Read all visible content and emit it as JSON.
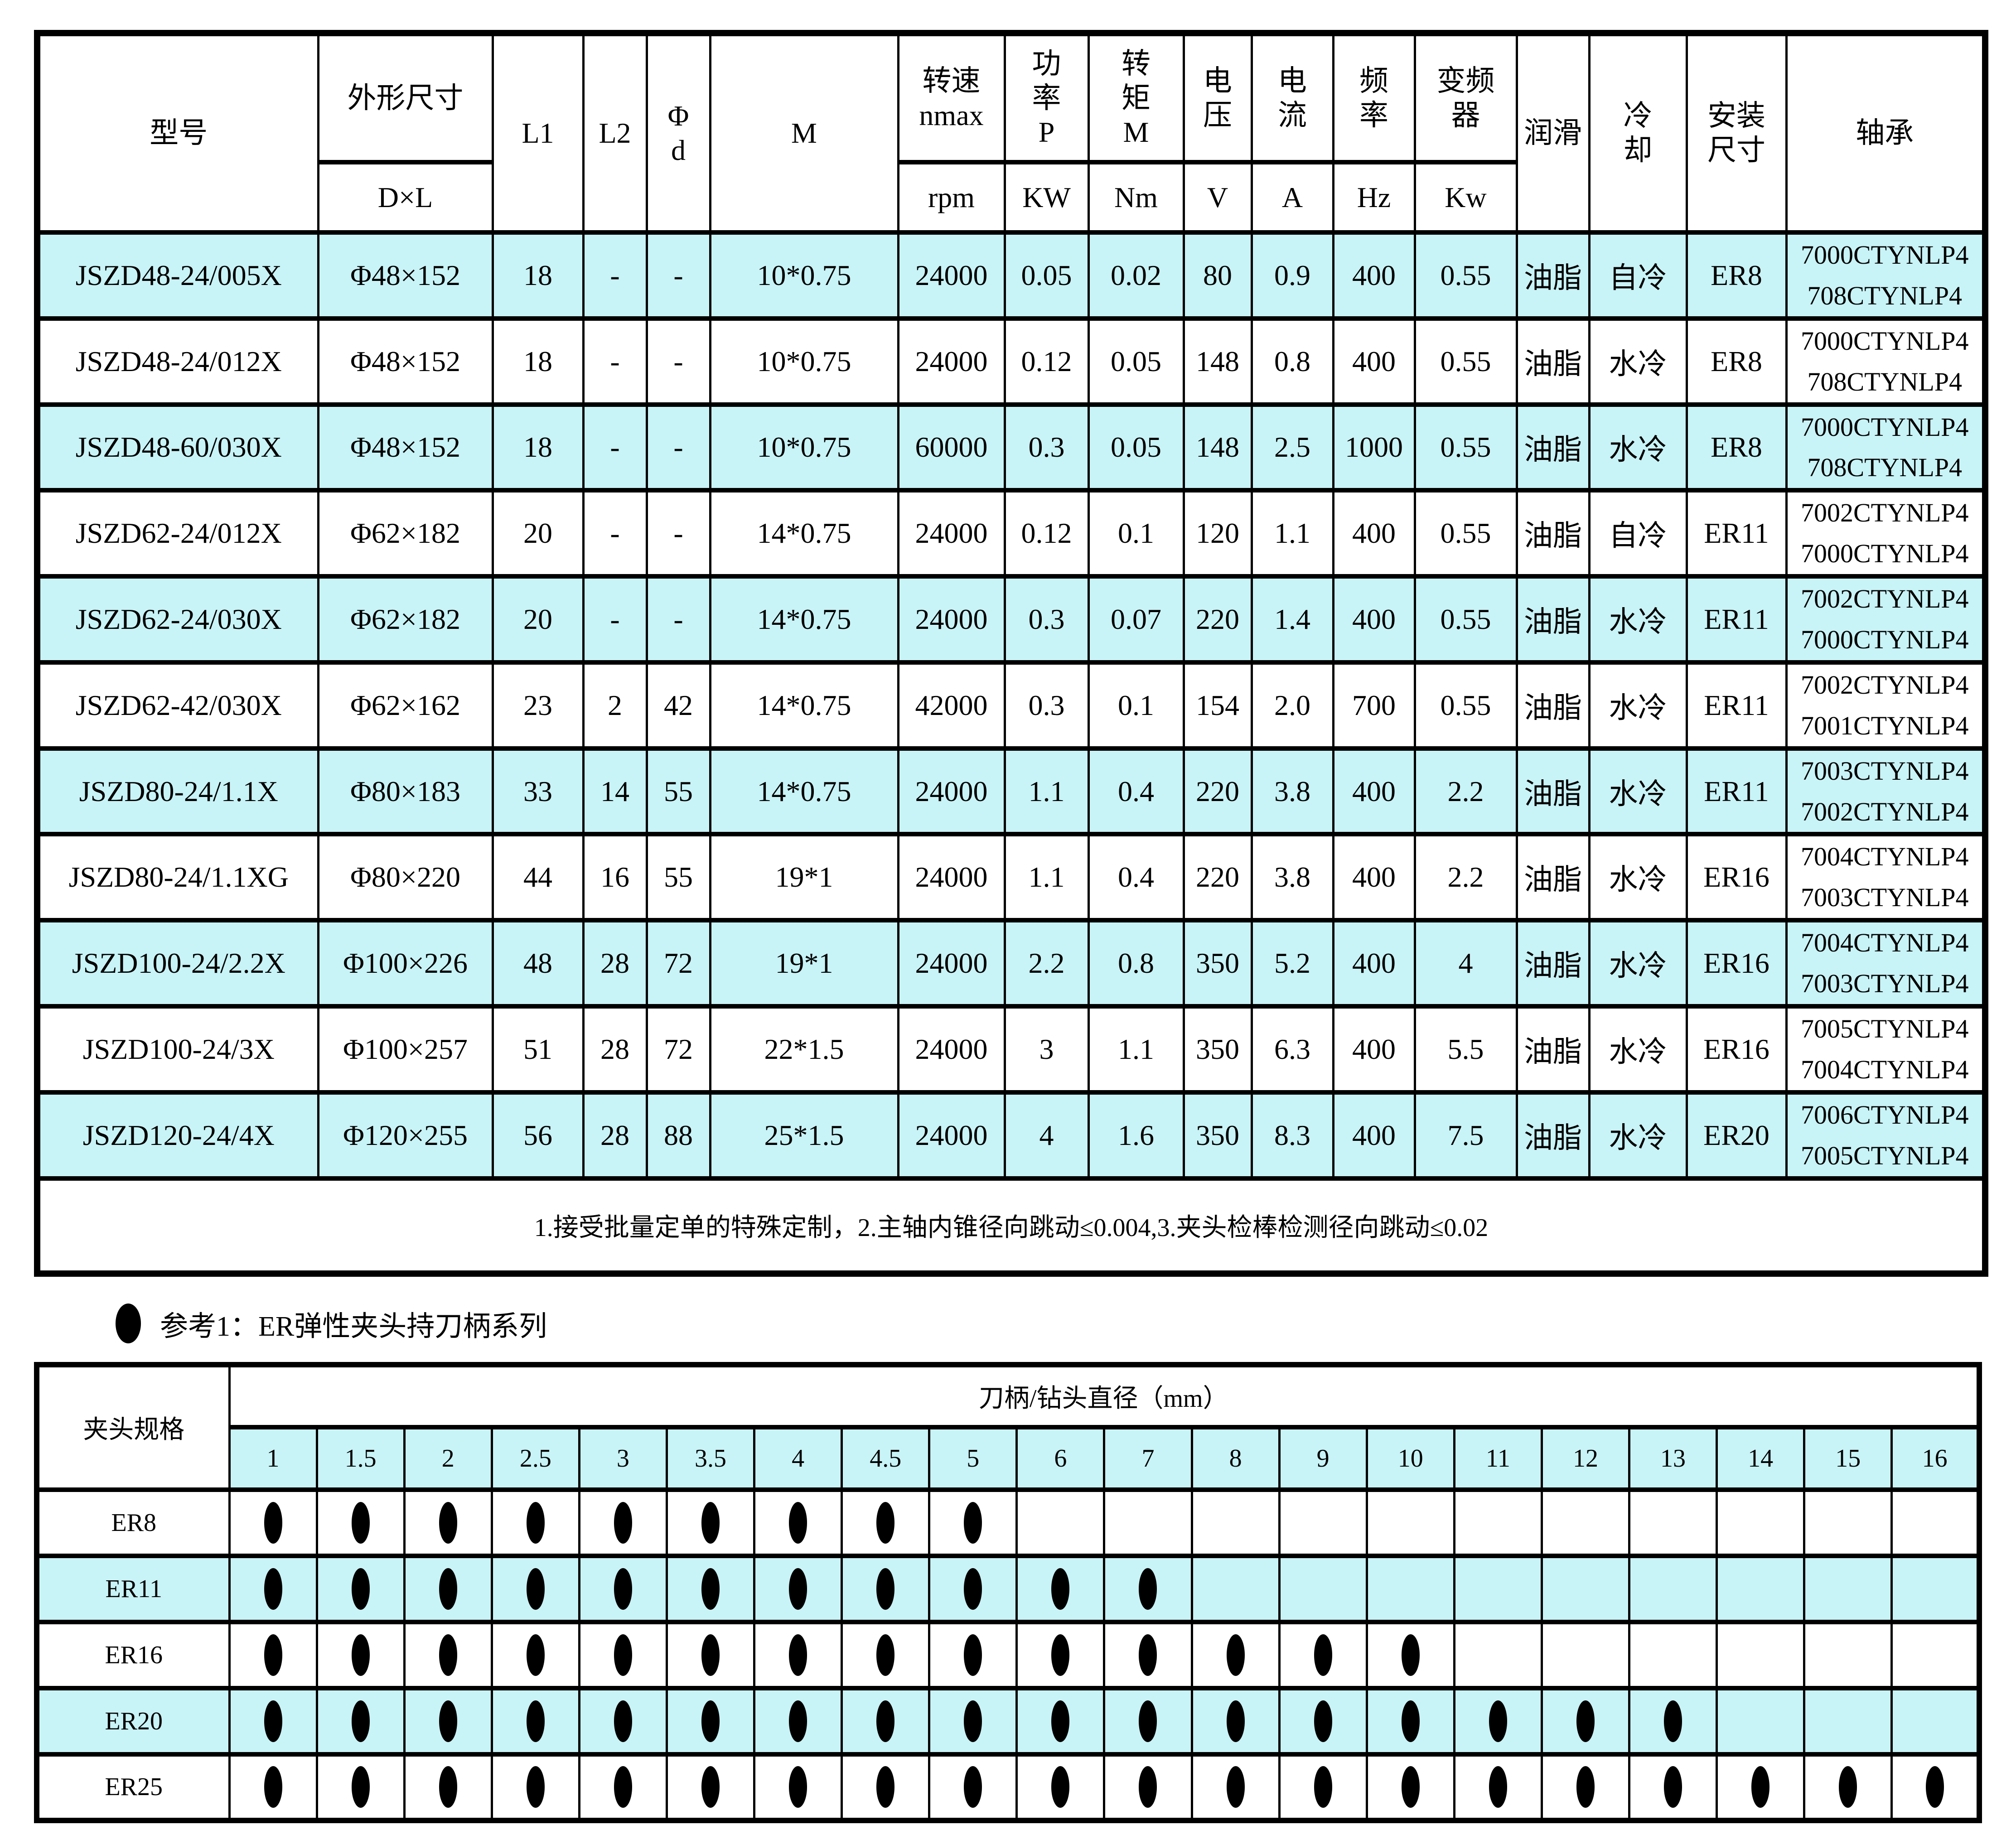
{
  "colors": {
    "row_highlight": "#C8F3F7",
    "border": "#000000",
    "background": "#FFFFFF"
  },
  "main_table": {
    "headers": {
      "model": "型号",
      "dims_top": "外形尺寸",
      "dims_bottom": "D×L",
      "l1": "L1",
      "l2": "L2",
      "phi_d": "Φ\nd",
      "m": "M",
      "speed_top": "转速\nnmax",
      "speed_bottom": "rpm",
      "power_top": "功\n率\nP",
      "power_bottom": "KW",
      "torque_top": "转\n矩\nM",
      "torque_bottom": "Nm",
      "voltage_top": "电\n压",
      "voltage_bottom": "V",
      "current_top": "电\n流",
      "current_bottom": "A",
      "freq_top": "频\n率",
      "freq_bottom": "Hz",
      "inverter_top": "变频\n器",
      "inverter_bottom": "Kw",
      "lube": "润滑",
      "cooling": "冷\n却",
      "mounting": "安装\n尺寸",
      "bearing": "轴承"
    },
    "rows": [
      [
        "JSZD48-24/005X",
        "Φ48×152",
        "18",
        "-",
        "-",
        "10*0.75",
        "24000",
        "0.05",
        "0.02",
        "80",
        "0.9",
        "400",
        "0.55",
        "油脂",
        "自冷",
        "ER8",
        "7000CTYNLP4\n708CTYNLP4"
      ],
      [
        "JSZD48-24/012X",
        "Φ48×152",
        "18",
        "-",
        "-",
        "10*0.75",
        "24000",
        "0.12",
        "0.05",
        "148",
        "0.8",
        "400",
        "0.55",
        "油脂",
        "水冷",
        "ER8",
        "7000CTYNLP4\n708CTYNLP4"
      ],
      [
        "JSZD48-60/030X",
        "Φ48×152",
        "18",
        "-",
        "-",
        "10*0.75",
        "60000",
        "0.3",
        "0.05",
        "148",
        "2.5",
        "1000",
        "0.55",
        "油脂",
        "水冷",
        "ER8",
        "7000CTYNLP4\n708CTYNLP4"
      ],
      [
        "JSZD62-24/012X",
        "Φ62×182",
        "20",
        "-",
        "-",
        "14*0.75",
        "24000",
        "0.12",
        "0.1",
        "120",
        "1.1",
        "400",
        "0.55",
        "油脂",
        "自冷",
        "ER11",
        "7002CTYNLP4\n7000CTYNLP4"
      ],
      [
        "JSZD62-24/030X",
        "Φ62×182",
        "20",
        "-",
        "-",
        "14*0.75",
        "24000",
        "0.3",
        "0.07",
        "220",
        "1.4",
        "400",
        "0.55",
        "油脂",
        "水冷",
        "ER11",
        "7002CTYNLP4\n7000CTYNLP4"
      ],
      [
        "JSZD62-42/030X",
        "Φ62×162",
        "23",
        "2",
        "42",
        "14*0.75",
        "42000",
        "0.3",
        "0.1",
        "154",
        "2.0",
        "700",
        "0.55",
        "油脂",
        "水冷",
        "ER11",
        "7002CTYNLP4\n7001CTYNLP4"
      ],
      [
        "JSZD80-24/1.1X",
        "Φ80×183",
        "33",
        "14",
        "55",
        "14*0.75",
        "24000",
        "1.1",
        "0.4",
        "220",
        "3.8",
        "400",
        "2.2",
        "油脂",
        "水冷",
        "ER11",
        "7003CTYNLP4\n7002CTYNLP4"
      ],
      [
        "JSZD80-24/1.1XG",
        "Φ80×220",
        "44",
        "16",
        "55",
        "19*1",
        "24000",
        "1.1",
        "0.4",
        "220",
        "3.8",
        "400",
        "2.2",
        "油脂",
        "水冷",
        "ER16",
        "7004CTYNLP4\n7003CTYNLP4"
      ],
      [
        "JSZD100-24/2.2X",
        "Φ100×226",
        "48",
        "28",
        "72",
        "19*1",
        "24000",
        "2.2",
        "0.8",
        "350",
        "5.2",
        "400",
        "4",
        "油脂",
        "水冷",
        "ER16",
        "7004CTYNLP4\n7003CTYNLP4"
      ],
      [
        "JSZD100-24/3X",
        "Φ100×257",
        "51",
        "28",
        "72",
        "22*1.5",
        "24000",
        "3",
        "1.1",
        "350",
        "6.3",
        "400",
        "5.5",
        "油脂",
        "水冷",
        "ER16",
        "7005CTYNLP4\n7004CTYNLP4"
      ],
      [
        "JSZD120-24/4X",
        "Φ120×255",
        "56",
        "28",
        "88",
        "25*1.5",
        "24000",
        "4",
        "1.6",
        "350",
        "8.3",
        "400",
        "7.5",
        "油脂",
        "水冷",
        "ER20",
        "7006CTYNLP4\n7005CTYNLP4"
      ]
    ],
    "note": "1.接受批量定单的特殊定制，2.主轴内锥径向跳动≤0.004,3.夹头检棒检测径向跳动≤0.02"
  },
  "reference": {
    "text": "参考1：ER弹性夹头持刀柄系列"
  },
  "collet_table": {
    "corner_header": "夹头规格",
    "span_header": "刀柄/钻头直径（mm）",
    "diameters": [
      "1",
      "1.5",
      "2",
      "2.5",
      "3",
      "3.5",
      "4",
      "4.5",
      "5",
      "6",
      "7",
      "8",
      "9",
      "10",
      "11",
      "12",
      "13",
      "14",
      "15",
      "16"
    ],
    "rows": [
      {
        "label": "ER8",
        "dot_count": 9
      },
      {
        "label": "ER11",
        "dot_count": 11
      },
      {
        "label": "ER16",
        "dot_count": 14
      },
      {
        "label": "ER20",
        "dot_count": 17
      },
      {
        "label": "ER25",
        "dot_count": 20
      }
    ]
  }
}
